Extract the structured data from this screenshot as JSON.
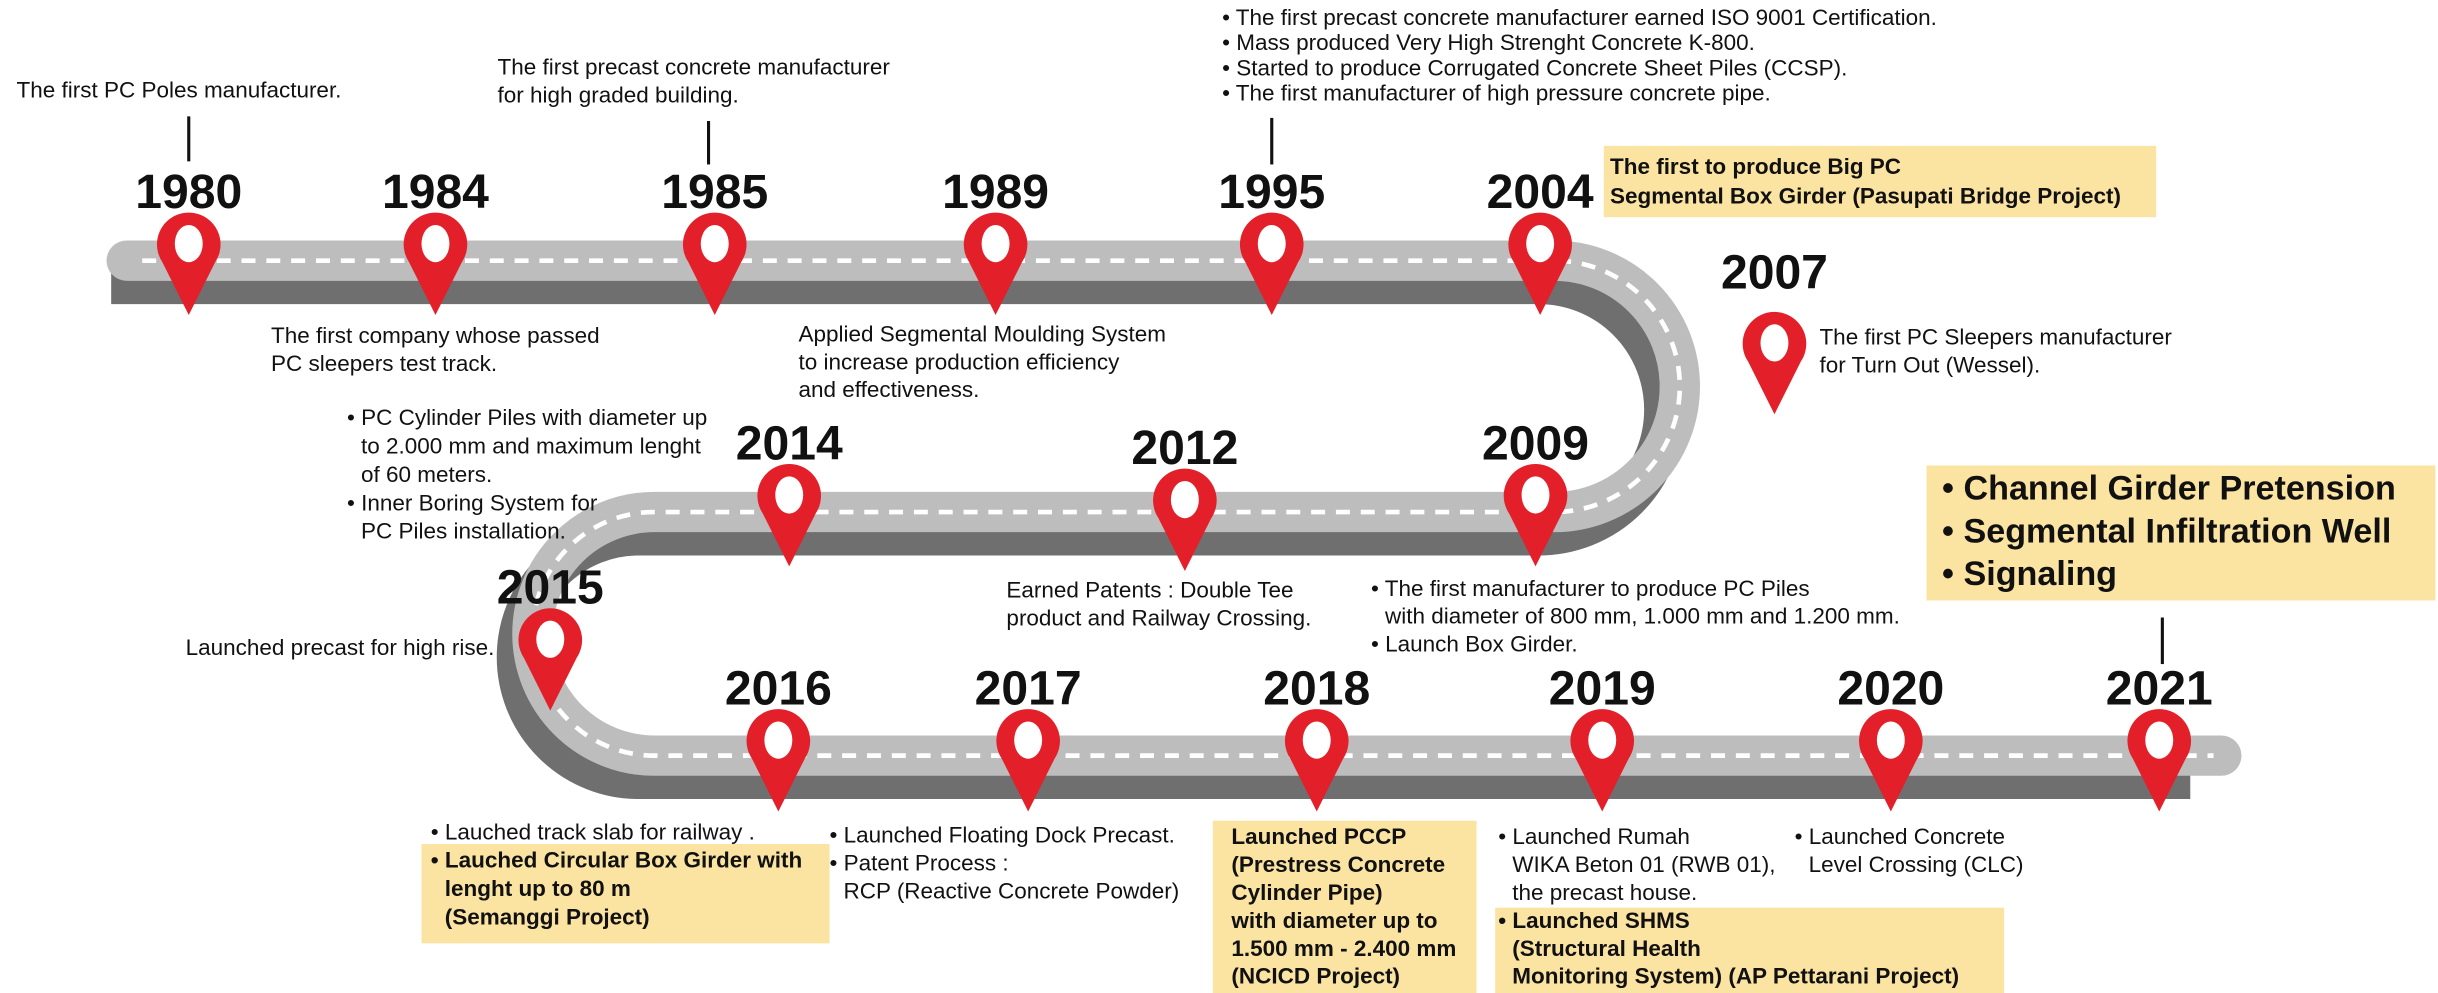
{
  "milestones": [
    {
      "year": "1980",
      "notes": [
        "The first PC Poles manufacturer."
      ]
    },
    {
      "year": "1984",
      "notes": [
        "The first company whose passed",
        "PC sleepers test track."
      ]
    },
    {
      "year": "1985",
      "notes": [
        "The first precast concrete manufacturer",
        "for high graded building."
      ]
    },
    {
      "year": "1989",
      "notes": [
        "Applied Segmental Moulding System",
        "to increase production efficiency",
        "and effectiveness."
      ]
    },
    {
      "year": "1995",
      "notes": [
        "• The first precast concrete manufacturer earned ISO 9001 Certification.",
        "• Mass produced Very High Strenght Concrete K-800.",
        "• Started to produce Corrugated Concrete Sheet Piles (CCSP).",
        "• The first manufacturer of high pressure concrete pipe."
      ]
    },
    {
      "year": "2004",
      "highlight": [
        "The first to produce Big PC",
        "Segmental Box Girder (Pasupati Bridge Project)"
      ]
    },
    {
      "year": "2007",
      "notes": [
        "The first PC Sleepers manufacturer",
        "for Turn Out (Wessel)."
      ]
    },
    {
      "year": "2009",
      "notes": [
        "• The first manufacturer to produce PC Piles",
        "with diameter of 800 mm, 1.000 mm and 1.200 mm.",
        "• Launch Box Girder."
      ]
    },
    {
      "year": "2012",
      "notes": [
        "Earned Patents : Double Tee",
        "product and Railway Crossing."
      ]
    },
    {
      "year": "2014",
      "notes": [
        "• PC Cylinder Piles with diameter up",
        "to 2.000 mm and maximum lenght",
        "of 60 meters.",
        "• Inner Boring System for",
        "PC Piles installation."
      ]
    },
    {
      "year": "2015",
      "notes": [
        "Launched precast for high rise."
      ]
    },
    {
      "year": "2016",
      "notes": [
        "• Lauched track slab for railway  ."
      ],
      "highlight": [
        "• Lauched Circular Box Girder with",
        "lenght up to 80 m",
        "(Semanggi Project)"
      ]
    },
    {
      "year": "2017",
      "notes": [
        "• Launched Floating Dock Precast.",
        "• Patent Process :",
        "RCP (Reactive Concrete Powder)"
      ]
    },
    {
      "year": "2018",
      "highlight": [
        "Launched PCCP",
        "(Prestress Concrete",
        "Cylinder Pipe)",
        "with diameter up to",
        "1.500 mm - 2.400 mm",
        "(NCICD Project)"
      ]
    },
    {
      "year": "2019",
      "notes": [
        "• Launched Rumah",
        "WIKA Beton 01 (RWB 01),",
        "the precast house."
      ],
      "highlight": [
        "• Launched SHMS",
        "(Structural Health",
        "Monitoring System) (AP Pettarani Project)"
      ]
    },
    {
      "year": "2020",
      "notes": [
        "• Launched Concrete",
        "Level Crossing (CLC)"
      ]
    },
    {
      "year": "2021",
      "highlight": [
        "• Channel Girder Pretension",
        "• Segmental Infiltration Well",
        "• Signaling"
      ]
    }
  ]
}
